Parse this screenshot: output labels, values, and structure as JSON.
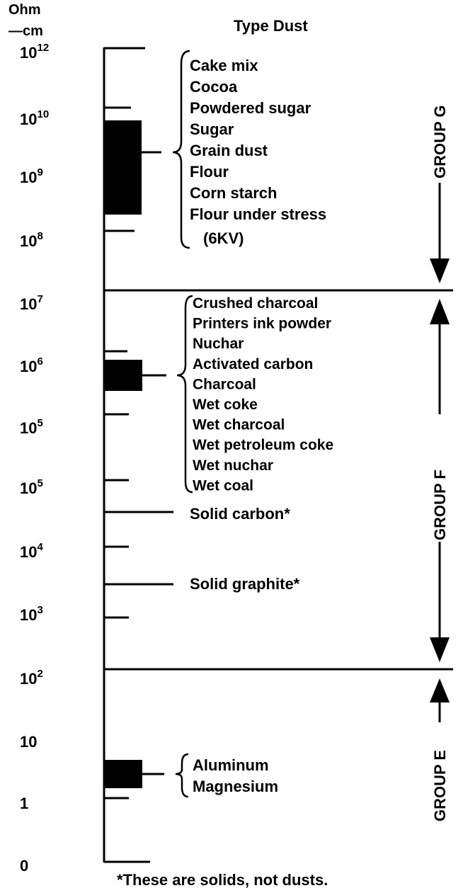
{
  "axis_label": {
    "line1": "Ohm",
    "line2": "—cm"
  },
  "heading": "Type Dust",
  "scale": [
    {
      "base": "10",
      "exp": "12"
    },
    {
      "base": "10",
      "exp": "10"
    },
    {
      "base": "10",
      "exp": "9"
    },
    {
      "base": "10",
      "exp": "8"
    },
    {
      "base": "10",
      "exp": "7"
    },
    {
      "base": "10",
      "exp": "6"
    },
    {
      "base": "10",
      "exp": "5"
    },
    {
      "base": "10",
      "exp": "5"
    },
    {
      "base": "10",
      "exp": "4"
    },
    {
      "base": "10",
      "exp": "3"
    },
    {
      "base": "10",
      "exp": "2"
    },
    {
      "base": "10"
    },
    {
      "base": "1"
    },
    {
      "base": "0"
    }
  ],
  "group_g": {
    "label": "GROUP G",
    "items": [
      "Cake mix",
      "Cocoa",
      "Powdered sugar",
      "Sugar",
      "Grain dust",
      "Flour",
      "Corn starch",
      "Flour under stress",
      "(6KV)"
    ]
  },
  "group_f": {
    "label": "GROUP F",
    "items": [
      "Crushed charcoal",
      "Printers ink powder",
      "Nuchar",
      "Activated carbon",
      "Charcoal",
      "Wet coke",
      "Wet charcoal",
      "Wet petroleum coke",
      "Wet nuchar",
      "Wet coal"
    ]
  },
  "solids": [
    "Solid carbon*",
    "Solid graphite*"
  ],
  "group_e": {
    "label": "GROUP E",
    "items": [
      "Aluminum",
      "Magnesium"
    ]
  },
  "footnote": "*These are solids, not dusts."
}
